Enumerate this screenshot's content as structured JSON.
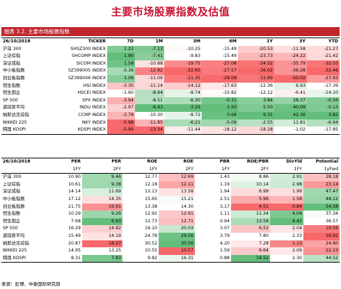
{
  "page_title": "主要市场股票指数及估值",
  "figure_caption": "图表 3.2. 主要市场股票指数",
  "source": "来源：彭博、中泰国际研究部",
  "returns_table": {
    "date": "26/10/2018",
    "ticker_header": "TICKER",
    "columns": [
      "7D",
      "1M",
      "3M",
      "6M",
      "1Y",
      "3Y",
      "YTD"
    ],
    "rows": [
      {
        "name": "沪深 300",
        "ticker": "SHSZ300 INDEX",
        "values": [
          "1.23",
          "-7.13",
          "-10.25",
          "-15.49",
          "-20.53",
          "-11.58",
          "-21.27"
        ]
      },
      {
        "name": "上证综指",
        "ticker": "SHCOMP INDEX",
        "values": [
          "1.90",
          "-7.41",
          "-9.83",
          "-15.49",
          "-23.73",
          "-24.22",
          "-21.42"
        ]
      },
      {
        "name": "深证成指",
        "ticker": "SICOM INDEX",
        "values": [
          "1.58",
          "-10.88",
          "-19.75",
          "-27.08",
          "-34.52",
          "-35.79",
          "-32.03"
        ]
      },
      {
        "name": "中小板指数",
        "ticker": "SZ399005 INDEX",
        "values": [
          "0.36",
          "-12.82",
          "-22.65",
          "-27.57",
          "-36.02",
          "-36.28",
          "-33.46"
        ]
      },
      {
        "name": "创业板指数",
        "ticker": "SZ399006 INDEX",
        "values": [
          "1.06",
          "-11.09",
          "-21.35",
          "-29.09",
          "-33.89",
          "-50.02",
          "-27.93"
        ]
      },
      {
        "name": "恒生指数",
        "ticker": "HSI INDEX",
        "values": [
          "-3.30",
          "-11.14",
          "-14.12",
          "-17.63",
          "-12.36",
          "6.93",
          "-17.39"
        ]
      },
      {
        "name": "恒生国企",
        "ticker": "HSCEI INDEX",
        "values": [
          "-1.60",
          "-8.44",
          "-8.74",
          "-15.82",
          "-12.12",
          "-6.41",
          "-14.10"
        ]
      },
      {
        "name": "SP 500",
        "ticker": "SPX INDEX",
        "values": [
          "-3.94",
          "-8.51",
          "-6.30",
          "-0.31",
          "3.84",
          "28.37",
          "-0.56"
        ]
      },
      {
        "name": "道琼斯平均",
        "ticker": "INDU INDEX",
        "values": [
          "-2.97",
          "-6.43",
          "-3.29",
          "1.50",
          "5.50",
          "40.09",
          "-0.13"
        ]
      },
      {
        "name": "纳斯达克综指",
        "ticker": "CCMP INDEX",
        "values": [
          "-3.78",
          "-10.30",
          "-8.72",
          "0.68",
          "9.31",
          "42.36",
          "3.82"
        ]
      },
      {
        "name": "NIKKEI 225",
        "ticker": "NKY INDEX",
        "values": [
          "-5.98",
          "-11.85",
          "-6.21",
          "-5.09",
          "-2.55",
          "11.81",
          "-6.94"
        ]
      },
      {
        "name": "韩国 KOSPI",
        "ticker": "KOSPI INDEX",
        "values": [
          "-5.99",
          "-13.34",
          "-11.44",
          "-18.12",
          "-18.28",
          "-1.02",
          "-17.85"
        ]
      }
    ]
  },
  "valuation_table": {
    "date": "26/10/2018",
    "columns": [
      "PER",
      "PER",
      "ROE",
      "ROE",
      "PBR",
      "ROE/PBR",
      "DivYld",
      "Potential"
    ],
    "subcolumns": [
      "1FY",
      "2FY",
      "1FY",
      "2FY",
      "1FY",
      "2FY",
      "1FY",
      "1yFwd"
    ],
    "rows": [
      {
        "name": "沪深 300",
        "values": [
          "10.90",
          "9.46",
          "12.77",
          "12.69",
          "1.43",
          "8.86",
          "2.91",
          "28.18"
        ]
      },
      {
        "name": "上证综指",
        "values": [
          "10.61",
          "9.38",
          "12.18",
          "12.11",
          "1.19",
          "10.14",
          "2.98",
          "23.14"
        ]
      },
      {
        "name": "深证成指",
        "values": [
          "14.14",
          "11.69",
          "13.13",
          "13.58",
          "1.94",
          "6.99",
          "1.99",
          "47.47"
        ]
      },
      {
        "name": "中小板指数",
        "values": [
          "17.12",
          "14.35",
          "15.65",
          "15.21",
          "2.51",
          "5.96",
          "1.58",
          "48.12"
        ]
      },
      {
        "name": "创业板指数",
        "values": [
          "21.75",
          "16.91",
          "13.38",
          "14.30",
          "3.17",
          "4.51",
          "0.84",
          "54.58"
        ]
      },
      {
        "name": "恒生指数",
        "values": [
          "10.29",
          "9.26",
          "12.92",
          "12.91",
          "1.11",
          "11.34",
          "4.04",
          "37.34"
        ]
      },
      {
        "name": "恒生国企",
        "values": [
          "7.68",
          "6.93",
          "12.73",
          "12.71",
          "0.94",
          "13.58",
          "4.41",
          "36.57"
        ]
      },
      {
        "name": "SP 500",
        "values": [
          "16.29",
          "14.82",
          "19.10",
          "20.03",
          "3.07",
          "6.52",
          "2.04",
          "19.59"
        ]
      },
      {
        "name": "道琼斯平均",
        "values": [
          "15.49",
          "14.19",
          "24.78",
          "29.56",
          "3.79",
          "7.80",
          "2.33",
          "16.92"
        ]
      },
      {
        "name": "纳斯达克综指",
        "values": [
          "20.87",
          "18.27",
          "30.52",
          "30.56",
          "4.20",
          "7.28",
          "1.13",
          "24.60"
        ]
      },
      {
        "name": "NIKKEI 225",
        "values": [
          "14.95",
          "13.25",
          "10.55",
          "10.57",
          "1.59",
          "6.64",
          "2.09",
          "22.23"
        ]
      },
      {
        "name": "韩国 KOSPI",
        "values": [
          "8.31",
          "7.83",
          "9.82",
          "16.31",
          "0.88",
          "18.52",
          "2.30",
          "44.52"
        ]
      }
    ]
  },
  "colors": {
    "title_red": "#c8102e",
    "caption_bg": "#c0272d",
    "positive_green": "#63be7b",
    "negative_red": "#f8696b",
    "neutral": "#ffffff"
  }
}
